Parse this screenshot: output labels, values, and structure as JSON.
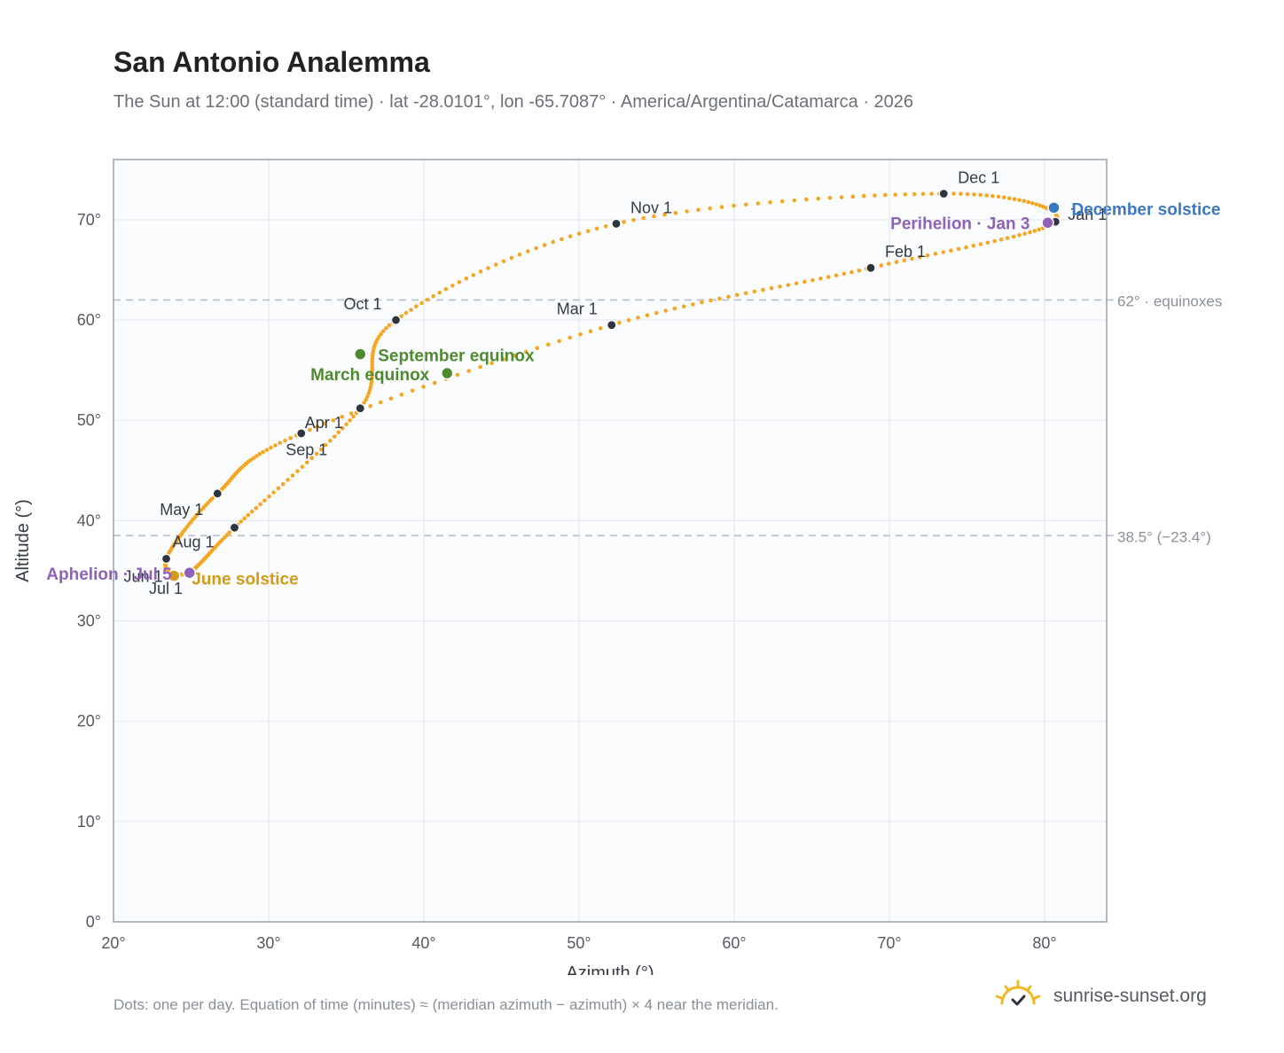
{
  "header": {
    "title": "San Antonio Analemma",
    "subtitle": "The Sun at 12:00 (standard time) · lat -28.0101°, lon -65.7087° · America/Argentina/Catamarca · 2026"
  },
  "footer": {
    "note": "Dots: one per day. Equation of time (minutes) ≈ (meridian azimuth − azimuth) × 4 near the meridian.",
    "brand": "sunrise-sunset.org",
    "brand_icon": "sun-check-icon"
  },
  "colors": {
    "path": "#f5a623",
    "month_dot": "#2d3540",
    "solstice_december": "#3a78c2",
    "solstice_june": "#d49a1a",
    "equinox": "#4f8a2e",
    "apsis": "#8e63b6",
    "reference_line": "#b5c0cc",
    "plot_bg": "#fbfcfe",
    "grid": "#e6e9ee",
    "frame": "#98a2ae"
  },
  "chart_data": {
    "type": "scatter",
    "xlabel": "Azimuth (°)",
    "ylabel": "Altitude (°)",
    "xlim": [
      20,
      84
    ],
    "ylim": [
      0,
      76
    ],
    "xticks": [
      20,
      30,
      40,
      50,
      60,
      70,
      80
    ],
    "yticks": [
      0,
      10,
      20,
      30,
      40,
      50,
      60,
      70
    ],
    "x_tick_labels": [
      "20°",
      "30°",
      "40°",
      "50°",
      "60°",
      "70°",
      "80°"
    ],
    "y_tick_labels": [
      "0°",
      "10°",
      "20°",
      "30°",
      "40°",
      "50°",
      "60°",
      "70°"
    ],
    "grid": true,
    "reference_lines": [
      {
        "y": 62,
        "label": "62° · equinoxes"
      },
      {
        "y": 38.5,
        "label": "38.5° (−23.4°)"
      }
    ],
    "months": [
      {
        "label": "Jan 1",
        "az": 80.7,
        "alt": 69.8
      },
      {
        "label": "Feb 1",
        "az": 68.8,
        "alt": 65.2
      },
      {
        "label": "Mar 1",
        "az": 52.1,
        "alt": 59.5
      },
      {
        "label": "Apr 1",
        "az": 32.1,
        "alt": 48.7
      },
      {
        "label": "May 1",
        "az": 26.7,
        "alt": 42.7
      },
      {
        "label": "Jun 1",
        "az": 23.4,
        "alt": 36.2
      },
      {
        "label": "Jul 1",
        "az": 24.8,
        "alt": 34.8
      },
      {
        "label": "Aug 1",
        "az": 27.8,
        "alt": 39.3
      },
      {
        "label": "Sep 1",
        "az": 35.9,
        "alt": 51.2
      },
      {
        "label": "Oct 1",
        "az": 38.2,
        "alt": 60.0
      },
      {
        "label": "Nov 1",
        "az": 52.4,
        "alt": 69.6
      },
      {
        "label": "Dec 1",
        "az": 73.5,
        "alt": 72.6
      }
    ],
    "events": [
      {
        "label": "December solstice",
        "az": 80.6,
        "alt": 71.2,
        "kind": "solstice_december"
      },
      {
        "label": "June solstice",
        "az": 23.9,
        "alt": 34.5,
        "kind": "solstice_june"
      },
      {
        "label": "March equinox",
        "az": 41.5,
        "alt": 54.7,
        "kind": "equinox"
      },
      {
        "label": "September equinox",
        "az": 35.9,
        "alt": 56.6,
        "kind": "equinox"
      },
      {
        "label": "Perihelion · Jan 3",
        "az": 80.2,
        "alt": 69.7,
        "kind": "apsis"
      },
      {
        "label": "Aphelion · Jul 5",
        "az": 24.9,
        "alt": 34.8,
        "kind": "apsis"
      }
    ]
  }
}
